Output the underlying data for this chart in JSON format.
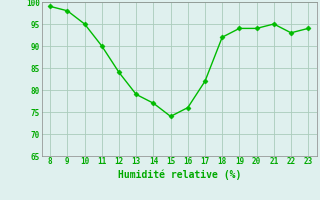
{
  "x": [
    8,
    9,
    10,
    11,
    12,
    13,
    14,
    15,
    16,
    17,
    18,
    19,
    20,
    21,
    22,
    23
  ],
  "y": [
    99,
    98,
    95,
    90,
    84,
    79,
    77,
    74,
    76,
    82,
    92,
    94,
    94,
    95,
    93,
    94
  ],
  "xlabel": "Humidité relative (%)",
  "ylim": [
    65,
    100
  ],
  "yticks": [
    65,
    70,
    75,
    80,
    85,
    90,
    95,
    100
  ],
  "xticks": [
    8,
    9,
    10,
    11,
    12,
    13,
    14,
    15,
    16,
    17,
    18,
    19,
    20,
    21,
    22,
    23
  ],
  "line_color": "#00bb00",
  "marker_color": "#00bb00",
  "bg_color": "#dff0ee",
  "grid_color": "#aaccbb",
  "label_color": "#00aa00",
  "tick_color": "#00aa00",
  "xlim_left": 7.5,
  "xlim_right": 23.5
}
